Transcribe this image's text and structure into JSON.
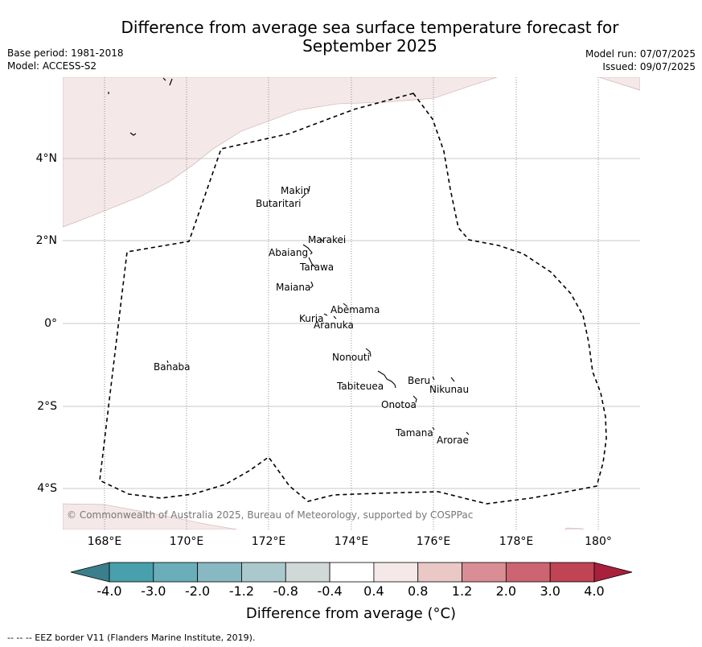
{
  "title_line1": "Difference from average sea surface temperature forecast for",
  "title_line2": "September 2025",
  "base_period": "Base period: 1981-2018",
  "model": "Model: ACCESS-S2",
  "model_run": "Model run: 07/07/2025",
  "issued": "Issued: 09/07/2025",
  "copyright": "© Commonwealth of Australia 2025, Bureau of Meteorology, supported by COSPPac",
  "lat_labels": [
    "4°N",
    "2°N",
    "0°",
    "2°S",
    "4°S"
  ],
  "lon_labels": [
    "168°E",
    "170°E",
    "172°E",
    "174°E",
    "176°E",
    "178°E",
    "180°"
  ],
  "islands": [
    "Makin",
    "Butaritari",
    "Marakei",
    "Abaiang",
    "Tarawa",
    "Maiana",
    "Abemama",
    "Kuria",
    "Aranuka",
    "Nonouti",
    "Banaba",
    "Beru",
    "Nikunau",
    "Tabiteuea",
    "Onotoa",
    "Tamana",
    "Arorae"
  ],
  "colorbar": {
    "ticks": [
      "-4.0",
      "-3.0",
      "-2.0",
      "-1.2",
      "-0.8",
      "-0.4",
      "0.4",
      "0.8",
      "1.2",
      "2.0",
      "3.0",
      "4.0"
    ],
    "colors": [
      "#3b7f8c",
      "#48a0ad",
      "#6aaeb9",
      "#88b8c1",
      "#a9c9cd",
      "#d1d8d8",
      "#ffffff",
      "#f4e9e8",
      "#e9c8c5",
      "#d98e96",
      "#cd6472",
      "#c04454",
      "#a8203c"
    ],
    "label": "Difference from average (°C)"
  },
  "footnote": "-- -- -- EEZ border V11 (Flanders Marine Institute, 2019)."
}
